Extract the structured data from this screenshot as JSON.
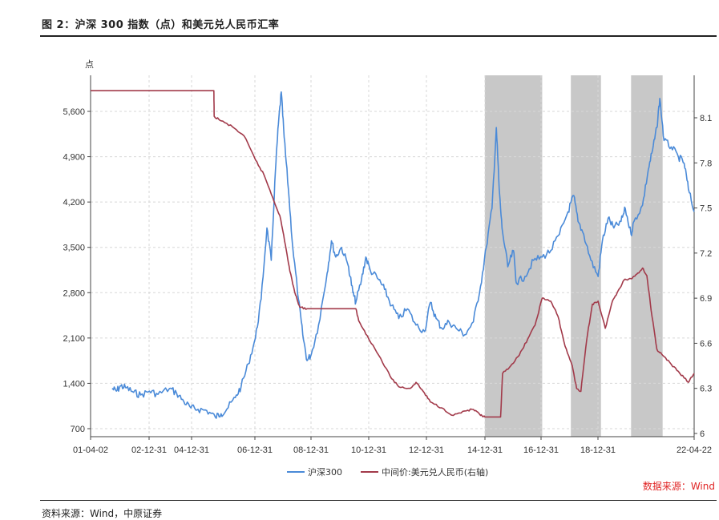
{
  "header": {
    "title": "图 2：沪深 300 指数（点）和美元兑人民币汇率"
  },
  "footer": {
    "note": "资料来源：Wind，中原证券",
    "source": "数据来源：Wind"
  },
  "colors": {
    "left_series": "#4a8ad8",
    "right_series": "#a23a4a",
    "shade": "#c8c8c8",
    "grid": "#d7d7d7"
  },
  "chart_data": {
    "type": "line",
    "y_left_label": "点",
    "y_left_ticks": [
      "5,600",
      "4,900",
      "4,200",
      "3,500",
      "2,800",
      "2,100",
      "1,400",
      "700"
    ],
    "y_left_range": [
      700,
      6200
    ],
    "y_right_ticks": [
      "8.1",
      "7.8",
      "7.5",
      "7.2",
      "6.9",
      "6.6",
      "6.3",
      "6"
    ],
    "y_right_range": [
      5.97,
      8.52
    ],
    "x_ticks": [
      "01-04-02",
      "02-12-31",
      "04-12-31",
      "06-12-31",
      "08-12-31",
      "10-12-31",
      "12-12-31",
      "14-12-31",
      "16-12-31",
      "18-12-31",
      "22-04-22"
    ],
    "x_range": [
      2001.25,
      2022.3
    ],
    "shaded_periods": [
      [
        2015.0,
        2017.0
      ],
      [
        2018.0,
        2019.05
      ],
      [
        2020.1,
        2021.2
      ]
    ],
    "series": [
      {
        "name": "沪深300",
        "axis": "left",
        "points": [
          [
            2002.0,
            1320
          ],
          [
            2002.15,
            1280
          ],
          [
            2002.3,
            1360
          ],
          [
            2002.5,
            1330
          ],
          [
            2002.75,
            1260
          ],
          [
            2003.0,
            1220
          ],
          [
            2003.3,
            1280
          ],
          [
            2003.6,
            1230
          ],
          [
            2004.0,
            1320
          ],
          [
            2004.25,
            1250
          ],
          [
            2004.5,
            1120
          ],
          [
            2004.75,
            1020
          ],
          [
            2005.0,
            1000
          ],
          [
            2005.3,
            980
          ],
          [
            2005.6,
            880
          ],
          [
            2005.8,
            930
          ],
          [
            2006.0,
            1000
          ],
          [
            2006.3,
            1180
          ],
          [
            2006.5,
            1350
          ],
          [
            2006.75,
            1700
          ],
          [
            2007.0,
            2100
          ],
          [
            2007.2,
            2700
          ],
          [
            2007.4,
            3800
          ],
          [
            2007.55,
            3300
          ],
          [
            2007.7,
            4700
          ],
          [
            2007.8,
            5400
          ],
          [
            2007.9,
            5900
          ],
          [
            2008.0,
            5200
          ],
          [
            2008.15,
            4400
          ],
          [
            2008.3,
            3500
          ],
          [
            2008.5,
            2700
          ],
          [
            2008.65,
            2150
          ],
          [
            2008.8,
            1750
          ],
          [
            2008.95,
            1850
          ],
          [
            2009.2,
            2300
          ],
          [
            2009.5,
            3100
          ],
          [
            2009.65,
            3600
          ],
          [
            2009.8,
            3350
          ],
          [
            2010.0,
            3500
          ],
          [
            2010.25,
            3200
          ],
          [
            2010.4,
            2800
          ],
          [
            2010.5,
            2650
          ],
          [
            2010.7,
            3000
          ],
          [
            2010.85,
            3350
          ],
          [
            2011.0,
            3150
          ],
          [
            2011.3,
            3000
          ],
          [
            2011.5,
            2850
          ],
          [
            2011.75,
            2600
          ],
          [
            2012.0,
            2400
          ],
          [
            2012.3,
            2550
          ],
          [
            2012.6,
            2300
          ],
          [
            2012.9,
            2200
          ],
          [
            2013.1,
            2650
          ],
          [
            2013.3,
            2400
          ],
          [
            2013.5,
            2250
          ],
          [
            2013.75,
            2350
          ],
          [
            2014.0,
            2250
          ],
          [
            2014.3,
            2150
          ],
          [
            2014.6,
            2350
          ],
          [
            2014.85,
            2900
          ],
          [
            2015.05,
            3500
          ],
          [
            2015.25,
            4100
          ],
          [
            2015.4,
            5350
          ],
          [
            2015.5,
            4400
          ],
          [
            2015.6,
            3800
          ],
          [
            2015.8,
            3200
          ],
          [
            2016.0,
            3450
          ],
          [
            2016.1,
            2950
          ],
          [
            2016.4,
            3050
          ],
          [
            2016.7,
            3300
          ],
          [
            2017.0,
            3350
          ],
          [
            2017.3,
            3450
          ],
          [
            2017.6,
            3700
          ],
          [
            2017.9,
            4050
          ],
          [
            2018.1,
            4300
          ],
          [
            2018.25,
            3900
          ],
          [
            2018.45,
            3700
          ],
          [
            2018.7,
            3300
          ],
          [
            2018.95,
            3050
          ],
          [
            2019.1,
            3600
          ],
          [
            2019.3,
            3950
          ],
          [
            2019.5,
            3800
          ],
          [
            2019.75,
            3900
          ],
          [
            2019.9,
            4100
          ],
          [
            2020.1,
            3700
          ],
          [
            2020.2,
            3900
          ],
          [
            2020.5,
            4150
          ],
          [
            2020.7,
            4700
          ],
          [
            2020.85,
            5000
          ],
          [
            2021.0,
            5350
          ],
          [
            2021.1,
            5800
          ],
          [
            2021.25,
            5150
          ],
          [
            2021.5,
            5050
          ],
          [
            2021.75,
            4900
          ],
          [
            2021.95,
            4800
          ],
          [
            2022.1,
            4400
          ],
          [
            2022.3,
            4050
          ]
        ]
      },
      {
        "name": "中间价:美元兑人民币(右轴)",
        "axis": "right",
        "points": [
          [
            2001.25,
            8.28
          ],
          [
            2005.55,
            8.28
          ],
          [
            2005.56,
            8.11
          ],
          [
            2005.8,
            8.08
          ],
          [
            2006.2,
            8.04
          ],
          [
            2006.6,
            7.98
          ],
          [
            2007.0,
            7.82
          ],
          [
            2007.3,
            7.72
          ],
          [
            2007.6,
            7.57
          ],
          [
            2007.85,
            7.45
          ],
          [
            2008.05,
            7.25
          ],
          [
            2008.2,
            7.08
          ],
          [
            2008.4,
            6.92
          ],
          [
            2008.55,
            6.84
          ],
          [
            2008.8,
            6.83
          ],
          [
            2010.5,
            6.83
          ],
          [
            2010.6,
            6.75
          ],
          [
            2010.9,
            6.65
          ],
          [
            2011.3,
            6.52
          ],
          [
            2011.7,
            6.38
          ],
          [
            2012.0,
            6.31
          ],
          [
            2012.4,
            6.3
          ],
          [
            2012.6,
            6.34
          ],
          [
            2012.85,
            6.28
          ],
          [
            2013.1,
            6.21
          ],
          [
            2013.5,
            6.17
          ],
          [
            2013.9,
            6.12
          ],
          [
            2014.3,
            6.15
          ],
          [
            2014.6,
            6.16
          ],
          [
            2014.85,
            6.12
          ],
          [
            2015.0,
            6.11
          ],
          [
            2015.55,
            6.11
          ],
          [
            2015.62,
            6.4
          ],
          [
            2015.9,
            6.45
          ],
          [
            2016.2,
            6.52
          ],
          [
            2016.5,
            6.63
          ],
          [
            2016.75,
            6.72
          ],
          [
            2017.0,
            6.9
          ],
          [
            2017.3,
            6.88
          ],
          [
            2017.55,
            6.78
          ],
          [
            2017.8,
            6.58
          ],
          [
            2018.05,
            6.45
          ],
          [
            2018.2,
            6.3
          ],
          [
            2018.35,
            6.28
          ],
          [
            2018.55,
            6.62
          ],
          [
            2018.75,
            6.86
          ],
          [
            2018.95,
            6.88
          ],
          [
            2019.2,
            6.7
          ],
          [
            2019.45,
            6.88
          ],
          [
            2019.65,
            6.95
          ],
          [
            2019.85,
            7.02
          ],
          [
            2020.1,
            7.03
          ],
          [
            2020.3,
            7.06
          ],
          [
            2020.5,
            7.1
          ],
          [
            2020.65,
            7.05
          ],
          [
            2020.8,
            6.82
          ],
          [
            2021.0,
            6.56
          ],
          [
            2021.2,
            6.52
          ],
          [
            2021.5,
            6.46
          ],
          [
            2021.8,
            6.4
          ],
          [
            2022.1,
            6.34
          ],
          [
            2022.3,
            6.4
          ]
        ]
      }
    ],
    "legend": [
      "沪深300",
      "中间价:美元兑人民币(右轴)"
    ]
  }
}
